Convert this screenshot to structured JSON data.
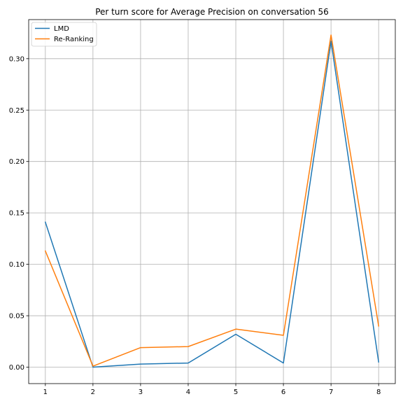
{
  "chart_data": {
    "type": "line",
    "title": "Per turn score for Average Precision on conversation 56",
    "xlabel": "",
    "ylabel": "",
    "x": [
      1,
      2,
      3,
      4,
      5,
      6,
      7,
      8
    ],
    "xlim": [
      0.65,
      8.35
    ],
    "ylim": [
      -0.016,
      0.338
    ],
    "xticks": [
      1,
      2,
      3,
      4,
      5,
      6,
      7,
      8
    ],
    "yticks": [
      0.0,
      0.05,
      0.1,
      0.15,
      0.2,
      0.25,
      0.3
    ],
    "ytick_labels": [
      "0.00",
      "0.05",
      "0.10",
      "0.15",
      "0.20",
      "0.25",
      "0.30"
    ],
    "grid": true,
    "legend_position": "top-left",
    "series": [
      {
        "name": "LMD",
        "color": "#1f77b4",
        "values": [
          0.141,
          0.0,
          0.003,
          0.004,
          0.032,
          0.004,
          0.317,
          0.005
        ]
      },
      {
        "name": "Re-Ranking",
        "color": "#ff7f0e",
        "values": [
          0.113,
          0.001,
          0.019,
          0.02,
          0.037,
          0.031,
          0.323,
          0.04
        ]
      }
    ]
  }
}
